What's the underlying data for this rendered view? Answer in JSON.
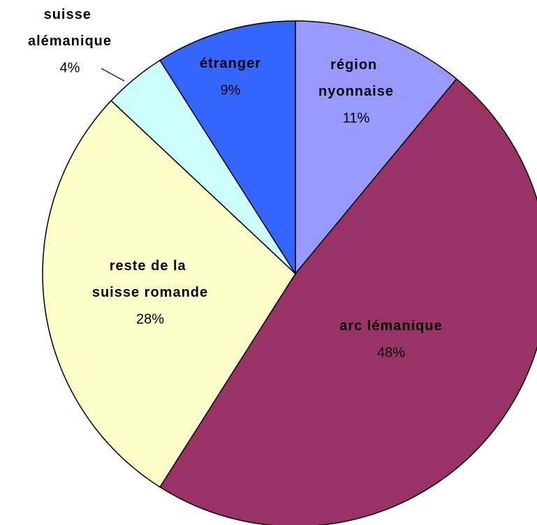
{
  "chart_data": {
    "type": "pie",
    "categories": [
      "région nyonnaise",
      "arc lémanique",
      "reste de la suisse romande",
      "suisse alémanique",
      "étranger"
    ],
    "values": [
      11,
      48,
      28,
      4,
      9
    ],
    "value_labels": [
      "11%",
      "48%",
      "28%",
      "4%",
      "9%"
    ],
    "colors": [
      "#9999ff",
      "#993366",
      "#ffffcc",
      "#ccffff",
      "#3366ff"
    ]
  }
}
